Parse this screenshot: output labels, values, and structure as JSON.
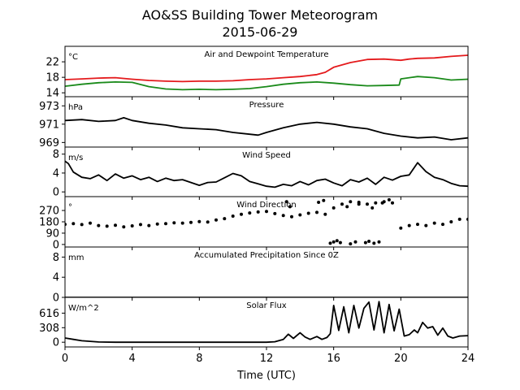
{
  "title_line1": "AO&SS Building Tower Meteorogram",
  "title_line2": "2015-06-29",
  "xlabel": "Time (UTC)",
  "colors": {
    "temperature": "#e41a1c",
    "dewpoint": "#1a8a1a",
    "line": "#000000",
    "background": "#ffffff"
  },
  "chart_data": [
    {
      "type": "line",
      "title": "Air and Dewpoint Temperature",
      "unit": "°C",
      "xlim": [
        0,
        24
      ],
      "ylim": [
        13,
        26
      ],
      "yticks": [
        14,
        18,
        22
      ],
      "series": [
        {
          "color": "#e41a1c",
          "x": [
            0,
            1,
            2,
            3,
            4,
            5,
            6,
            7,
            8,
            9,
            10,
            11,
            12,
            13,
            14,
            15,
            15.5,
            16,
            17,
            18,
            19,
            20,
            20.5,
            21,
            22,
            23,
            24
          ],
          "y": [
            17.4,
            17.6,
            17.8,
            17.9,
            17.5,
            17.2,
            17.0,
            16.9,
            17.0,
            17.0,
            17.1,
            17.4,
            17.6,
            17.9,
            18.2,
            18.7,
            19.3,
            20.6,
            21.8,
            22.6,
            22.7,
            22.4,
            22.7,
            22.9,
            23.0,
            23.4,
            23.7
          ]
        },
        {
          "color": "#1a8a1a",
          "x": [
            0,
            1,
            2,
            3,
            4,
            5,
            6,
            7,
            8,
            9,
            10,
            11,
            12,
            13,
            14,
            15,
            16,
            17,
            18,
            19,
            19.9,
            20,
            21,
            22,
            23,
            24
          ],
          "y": [
            15.7,
            16.2,
            16.6,
            16.8,
            16.7,
            15.6,
            15.0,
            14.8,
            14.9,
            14.8,
            14.9,
            15.1,
            15.6,
            16.2,
            16.6,
            16.8,
            16.5,
            16.1,
            15.8,
            15.9,
            16.0,
            17.6,
            18.2,
            17.9,
            17.3,
            17.5
          ]
        }
      ]
    },
    {
      "type": "line",
      "title": "Pressure",
      "unit": "hPa",
      "xlim": [
        0,
        24
      ],
      "ylim": [
        968.5,
        974
      ],
      "yticks": [
        969,
        971,
        973
      ],
      "series": [
        {
          "color": "#000000",
          "x": [
            0,
            1,
            2,
            3,
            3.5,
            4,
            5,
            6,
            7,
            8,
            9,
            10,
            11,
            11.5,
            12,
            13,
            14,
            15,
            16,
            17,
            18,
            19,
            20,
            21,
            22,
            23,
            24
          ],
          "y": [
            971.4,
            971.5,
            971.3,
            971.4,
            971.7,
            971.4,
            971.1,
            970.9,
            970.6,
            970.5,
            970.4,
            970.1,
            969.9,
            969.8,
            970.1,
            970.6,
            971.0,
            971.2,
            971.0,
            970.7,
            970.5,
            970.0,
            969.7,
            969.5,
            969.6,
            969.3,
            969.5
          ]
        }
      ]
    },
    {
      "type": "line",
      "title": "Wind Speed",
      "unit": "m/s",
      "xlim": [
        0,
        24
      ],
      "ylim": [
        -1,
        9.5
      ],
      "yticks": [
        0,
        4,
        8
      ],
      "series": [
        {
          "color": "#000000",
          "x": [
            0,
            0.2,
            0.5,
            1,
            1.5,
            2,
            2.5,
            3,
            3.5,
            4,
            4.5,
            5,
            5.5,
            6,
            6.5,
            7,
            7.5,
            8,
            8.5,
            9,
            9.5,
            10,
            10.5,
            11,
            11.5,
            12,
            12.5,
            13,
            13.5,
            14,
            14.5,
            15,
            15.5,
            16,
            16.5,
            17,
            17.5,
            18,
            18.5,
            19,
            19.5,
            20,
            20.5,
            21,
            21.5,
            22,
            22.5,
            23,
            23.5,
            24
          ],
          "y": [
            6.5,
            6.0,
            4.2,
            3.1,
            2.8,
            3.6,
            2.4,
            3.8,
            2.9,
            3.4,
            2.6,
            3.1,
            2.2,
            2.9,
            2.4,
            2.6,
            2.0,
            1.4,
            2.0,
            2.1,
            3.0,
            3.9,
            3.4,
            2.2,
            1.7,
            1.2,
            1.0,
            1.6,
            1.3,
            2.2,
            1.5,
            2.4,
            2.7,
            1.9,
            1.3,
            2.6,
            2.1,
            2.9,
            1.6,
            3.1,
            2.5,
            3.3,
            3.6,
            6.2,
            4.3,
            3.1,
            2.6,
            1.8,
            1.3,
            1.2
          ]
        }
      ]
    },
    {
      "type": "scatter",
      "title": "Wind Direction",
      "unit": "°",
      "xlim": [
        0,
        24
      ],
      "ylim": [
        -20,
        380
      ],
      "yticks": [
        0,
        90,
        180,
        270
      ],
      "series": [
        {
          "color": "#000000",
          "x": [
            0,
            0.5,
            1,
            1.5,
            2,
            2.5,
            3,
            3.5,
            4,
            4.5,
            5,
            5.5,
            6,
            6.5,
            7,
            7.5,
            8,
            8.5,
            9,
            9.5,
            10,
            10.5,
            11,
            11.5,
            12,
            12.5,
            13,
            13.5,
            14,
            14.5,
            15,
            15.5,
            16,
            16.5,
            17,
            17.5,
            18,
            18.5,
            19,
            19.5,
            20,
            20.5,
            21,
            21.5,
            22,
            22.5,
            23,
            23.5,
            24
          ],
          "y": [
            160,
            165,
            158,
            170,
            150,
            145,
            152,
            140,
            148,
            158,
            150,
            162,
            165,
            172,
            170,
            175,
            182,
            178,
            195,
            205,
            225,
            240,
            250,
            258,
            262,
            245,
            230,
            220,
            235,
            248,
            255,
            240,
            290,
            320,
            340,
            335,
            320,
            330,
            340,
            330,
            130,
            150,
            160,
            150,
            170,
            160,
            180,
            200,
            200
          ]
        },
        {
          "color": "#000000",
          "x": [
            13.2,
            13.4,
            15.8,
            16.0,
            16.2,
            16.4,
            17.0,
            17.3,
            17.9,
            18.1,
            18.4,
            18.7,
            15.1,
            15.4,
            16.8,
            17.5,
            18.3,
            18.9,
            19.3
          ],
          "y": [
            340,
            300,
            10,
            20,
            30,
            15,
            5,
            20,
            15,
            25,
            10,
            20,
            335,
            350,
            300,
            320,
            290,
            330,
            355
          ]
        }
      ]
    },
    {
      "type": "line",
      "title": "Accumulated Precipitation Since 0Z",
      "unit": "mm",
      "xlim": [
        0,
        24
      ],
      "ylim": [
        0,
        10
      ],
      "yticks": [
        0,
        4,
        8
      ],
      "series": [
        {
          "color": "#000000",
          "x": [
            0,
            24
          ],
          "y": [
            0,
            0
          ]
        }
      ]
    },
    {
      "type": "line",
      "title": "Solar Flux",
      "unit": "W/m^2",
      "xlim": [
        0,
        24
      ],
      "ylim": [
        -100,
        950
      ],
      "yticks": [
        0,
        308,
        616
      ],
      "series": [
        {
          "color": "#000000",
          "x": [
            0,
            0.5,
            1,
            2,
            3,
            4,
            5,
            6,
            7,
            8,
            9,
            10,
            11,
            12,
            12.5,
            13,
            13.3,
            13.6,
            14,
            14.3,
            14.6,
            15,
            15.3,
            15.6,
            15.8,
            16,
            16.3,
            16.6,
            16.9,
            17.2,
            17.5,
            17.8,
            18.1,
            18.4,
            18.7,
            19.0,
            19.3,
            19.6,
            19.9,
            20.2,
            20.5,
            20.8,
            21.0,
            21.3,
            21.6,
            21.9,
            22.2,
            22.5,
            22.8,
            23.1,
            23.5,
            24
          ],
          "y": [
            90,
            60,
            30,
            5,
            0,
            0,
            0,
            0,
            0,
            0,
            0,
            0,
            0,
            0,
            10,
            60,
            170,
            80,
            200,
            110,
            60,
            120,
            60,
            100,
            180,
            780,
            250,
            750,
            200,
            780,
            300,
            720,
            850,
            260,
            860,
            200,
            800,
            240,
            700,
            130,
            160,
            260,
            200,
            420,
            300,
            330,
            150,
            300,
            130,
            90,
            130,
            140
          ]
        }
      ]
    }
  ],
  "x_ticks": [
    0,
    4,
    8,
    12,
    16,
    20,
    24
  ]
}
